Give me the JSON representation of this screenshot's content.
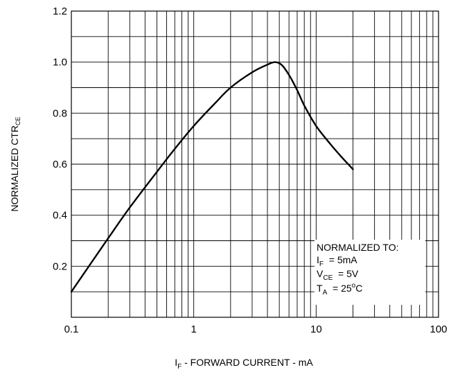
{
  "chart_data": {
    "type": "line",
    "xscale": "log",
    "xlim": [
      0.1,
      100
    ],
    "ylim": [
      0.0,
      1.2
    ],
    "grid": true,
    "xticks": [
      {
        "value": 0.1,
        "label": "0.1"
      },
      {
        "value": 1,
        "label": "1"
      },
      {
        "value": 10,
        "label": "10"
      },
      {
        "value": 100,
        "label": "100"
      }
    ],
    "yticks": [
      {
        "value": 0.2,
        "label": "0.2"
      },
      {
        "value": 0.4,
        "label": "0.4"
      },
      {
        "value": 0.6,
        "label": "0.6"
      },
      {
        "value": 0.8,
        "label": "0.8"
      },
      {
        "value": 1.0,
        "label": "1.0"
      },
      {
        "value": 1.2,
        "label": "1.2"
      }
    ],
    "xlabel": {
      "pre": "I",
      "sub": "F",
      "post": " - FORWARD CURRENT - mA"
    },
    "ylabel": {
      "pre": "NORMALIZED CTR",
      "sub": "CE"
    },
    "series": [
      {
        "x": [
          0.1,
          0.2,
          0.3,
          0.5,
          0.7,
          1.0,
          1.5,
          2.0,
          3.0,
          4.0,
          4.6,
          5.2,
          6.0,
          7.0,
          8.0,
          10.0,
          13.0,
          16.0,
          20.0
        ],
        "y": [
          0.1,
          0.31,
          0.43,
          0.57,
          0.66,
          0.75,
          0.84,
          0.9,
          0.96,
          0.99,
          1.0,
          0.99,
          0.95,
          0.89,
          0.83,
          0.75,
          0.68,
          0.63,
          0.58
        ]
      }
    ],
    "annotation": {
      "title": "NORMALIZED TO:",
      "lines": [
        {
          "pre": "I",
          "sub": "F",
          "post": "  = 5mA"
        },
        {
          "pre": "V",
          "sub": "CE",
          "post": "  = 5V"
        },
        {
          "pre": "T",
          "sub": "A",
          "post": "  = 25",
          "sup": "o",
          "tail": "C"
        }
      ]
    }
  }
}
